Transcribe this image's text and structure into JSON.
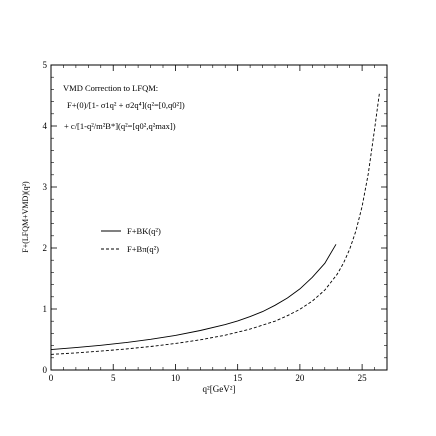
{
  "chart_data": {
    "type": "line",
    "xlabel": "q²[GeV²]",
    "ylabel": "F+(LFQM+VMD)(q²)",
    "xlim": [
      0,
      27
    ],
    "ylim": [
      0,
      5
    ],
    "x_ticks": [
      0,
      5,
      10,
      15,
      20,
      25
    ],
    "y_ticks": [
      0,
      1,
      2,
      3,
      4,
      5
    ],
    "x_tick_labels": [
      "0",
      "5",
      "10",
      "15",
      "20",
      "25"
    ],
    "y_tick_labels": [
      "0",
      "1",
      "2",
      "3",
      "4",
      "5"
    ],
    "grid": false,
    "legend_position": "middle-left",
    "annotation": {
      "line1": "VMD Correction to LFQM:",
      "line2": "F+(0)/[1- σ1q² + σ2q⁴](q²=[0,q0²])",
      "line3": "+ c/[1-q²/m²B*](q²=[q0²,q²max])"
    },
    "series": [
      {
        "name": "F+BK(q²)",
        "dash": "solid",
        "x": [
          0,
          2,
          4,
          6,
          8,
          10,
          12,
          14,
          15,
          16,
          17,
          18,
          19,
          20,
          21,
          22,
          22.9
        ],
        "y": [
          0.335,
          0.368,
          0.405,
          0.45,
          0.504,
          0.568,
          0.647,
          0.745,
          0.805,
          0.875,
          0.958,
          1.06,
          1.18,
          1.33,
          1.52,
          1.75,
          2.06
        ]
      },
      {
        "name": "F+Bπ(q²)",
        "dash": "dashed",
        "x": [
          0,
          2,
          4,
          6,
          8,
          10,
          12,
          14,
          16,
          18,
          19,
          20,
          21,
          22,
          23,
          23.5,
          24,
          24.5,
          25,
          25.5,
          26,
          26.4
        ],
        "y": [
          0.255,
          0.28,
          0.31,
          0.345,
          0.385,
          0.435,
          0.495,
          0.57,
          0.67,
          0.8,
          0.89,
          0.995,
          1.13,
          1.31,
          1.57,
          1.75,
          1.98,
          2.28,
          2.68,
          3.22,
          3.95,
          4.55
        ]
      }
    ]
  }
}
